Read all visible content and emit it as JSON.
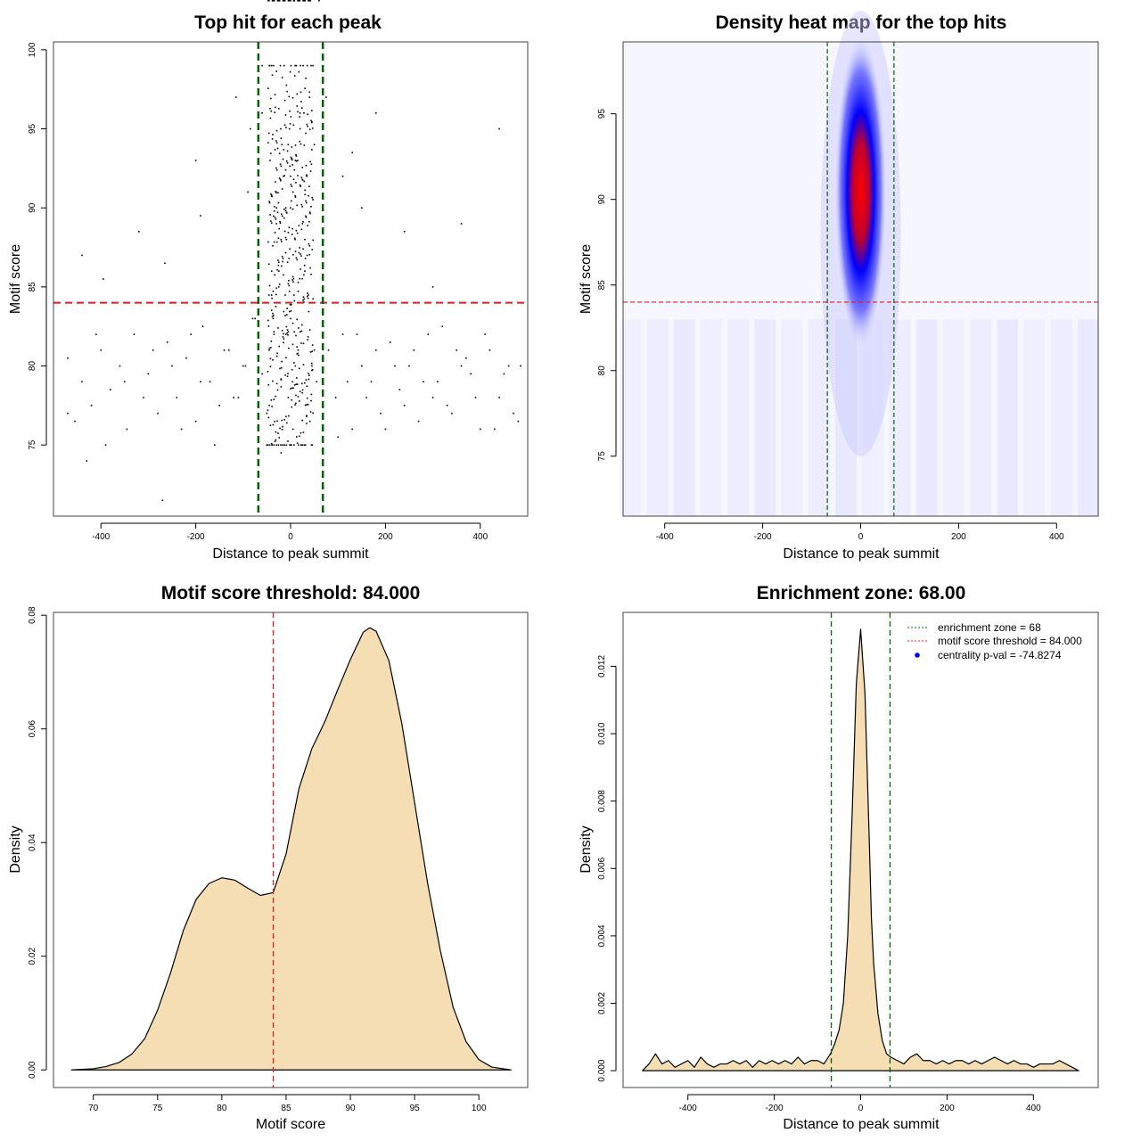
{
  "chart_data": [
    {
      "type": "scatter",
      "title": "Top hit for each peak",
      "xlabel": "Distance to peak summit",
      "ylabel": "Motif score",
      "xlim": [
        -500,
        500
      ],
      "ylim": [
        70.5,
        100.5
      ],
      "xticks": [
        -400,
        -200,
        0,
        200,
        400
      ],
      "yticks": [
        75,
        80,
        85,
        90,
        95,
        100
      ],
      "hline": 84,
      "vlines": [
        -68,
        68
      ],
      "colors": {
        "points": "#000000",
        "hline": "#e31a1c",
        "vlines": "#006400"
      },
      "points_x": [
        -470,
        -455,
        -440,
        -420,
        -400,
        -380,
        -360,
        -345,
        -330,
        -300,
        -280,
        -260,
        -240,
        -220,
        -200,
        -185,
        -170,
        -150,
        -130,
        -110,
        -95,
        -80,
        -60,
        -45,
        -470,
        -430,
        -410,
        -390,
        -350,
        -310,
        -290,
        -270,
        -250,
        -230,
        -210,
        -190,
        -160,
        -140,
        -120,
        -100,
        -75,
        -50,
        -320,
        -265,
        -200,
        -190,
        -115,
        -90,
        -85,
        -60,
        -440,
        -395,
        80,
        95,
        110,
        130,
        150,
        170,
        190,
        210,
        230,
        250,
        270,
        290,
        310,
        330,
        350,
        370,
        390,
        410,
        430,
        450,
        470,
        485,
        100,
        120,
        140,
        160,
        180,
        200,
        220,
        240,
        260,
        280,
        300,
        320,
        340,
        360,
        380,
        400,
        420,
        440,
        460,
        480,
        75,
        110,
        150,
        240,
        300,
        440,
        130,
        180,
        360,
        -30,
        -15,
        -5,
        5,
        15,
        25,
        35,
        -40,
        -20,
        0,
        20,
        40,
        -25,
        -10,
        10,
        30,
        -35,
        -5,
        5,
        45,
        55,
        -50,
        50,
        -45,
        -20,
        0,
        20,
        50,
        -30,
        30,
        -10,
        10,
        -60,
        60,
        0
      ],
      "points_y": [
        80.5,
        76.5,
        79,
        77.5,
        81,
        78.5,
        80,
        76,
        82,
        79.5,
        77,
        81.5,
        78,
        80.5,
        76.5,
        82.5,
        79,
        77.5,
        81,
        78,
        80,
        83,
        79.5,
        81,
        77,
        74,
        82,
        75,
        79,
        78,
        81,
        71.5,
        80,
        76,
        82,
        79,
        75,
        81,
        78,
        80,
        83,
        77,
        88.5,
        86.5,
        93,
        89.5,
        97,
        91,
        95,
        96,
        87,
        85.5,
        81,
        78,
        82,
        76,
        80,
        79,
        77,
        81.5,
        78.5,
        80,
        76.5,
        82,
        79,
        77.5,
        81,
        80.5,
        78,
        82,
        76,
        79.5,
        77,
        80,
        75.5,
        79,
        82,
        78,
        81,
        76,
        80,
        77.5,
        81,
        79,
        78,
        82.5,
        77,
        80,
        79.5,
        76,
        81,
        78,
        80,
        76.5,
        97,
        92,
        90,
        88.5,
        85,
        95,
        93.5,
        96,
        89,
        90,
        92,
        94,
        91,
        93,
        89,
        87,
        86,
        88,
        92,
        95,
        97,
        85,
        90,
        93,
        88,
        82,
        78,
        76,
        80,
        79,
        75,
        81,
        77.5,
        74.5,
        83,
        96,
        94,
        89,
        86,
        82,
        80,
        99
      ],
      "point_count_note": "sampled"
    },
    {
      "type": "heatmap",
      "title": "Density heat map for the top hits",
      "xlabel": "Distance to peak summit",
      "ylabel": "Motif score",
      "xlim": [
        -485,
        485
      ],
      "ylim": [
        71.5,
        99.2
      ],
      "xticks": [
        -400,
        -200,
        0,
        200,
        400
      ],
      "yticks": [
        75,
        80,
        85,
        90,
        95
      ],
      "hline": 84,
      "vlines": [
        -68,
        68
      ],
      "density_peak": {
        "x": 0,
        "y": 91.5
      },
      "colors": {
        "low": "#ffffff",
        "mid": "#0000ff",
        "high": "#ff0000",
        "hline": "#e31a1c",
        "vlines": "#006400"
      }
    },
    {
      "type": "area",
      "title": "Motif score threshold: 84.000",
      "xlabel": "Motif score",
      "ylabel": "Density",
      "xlim": [
        66.9,
        103.8
      ],
      "ylim": [
        -0.0031,
        0.0805
      ],
      "xticks": [
        70,
        75,
        80,
        85,
        90,
        95,
        100
      ],
      "yticks": [
        0.0,
        0.02,
        0.04,
        0.06,
        0.08
      ],
      "ytick_labels": [
        "0.00",
        "0.02",
        "0.04",
        "0.06",
        "0.08"
      ],
      "vline": 84,
      "x": [
        68.3,
        70,
        71,
        72,
        73,
        74,
        75,
        76,
        77,
        78,
        79,
        80,
        81,
        82,
        83,
        84,
        85,
        86,
        87,
        88,
        89,
        90,
        91,
        91.5,
        92,
        93,
        94,
        95,
        96,
        97,
        98,
        99,
        100,
        101,
        102.5
      ],
      "y": [
        0,
        0.0002,
        0.0006,
        0.0013,
        0.0028,
        0.0055,
        0.0105,
        0.017,
        0.0245,
        0.03,
        0.0328,
        0.0338,
        0.0334,
        0.032,
        0.0307,
        0.0312,
        0.038,
        0.0495,
        0.0565,
        0.0612,
        0.0668,
        0.0722,
        0.077,
        0.0778,
        0.0772,
        0.072,
        0.061,
        0.047,
        0.033,
        0.021,
        0.011,
        0.005,
        0.0018,
        0.0005,
        0
      ],
      "colors": {
        "fill": "#f5deb3",
        "vline": "#e31a1c"
      }
    },
    {
      "type": "area",
      "title": "Enrichment zone: 68.00",
      "xlabel": "Distance to peak summit",
      "ylabel": "Density",
      "xlim": [
        -550,
        550
      ],
      "ylim": [
        -0.0005,
        0.0136
      ],
      "xticks": [
        -400,
        -200,
        0,
        200,
        400
      ],
      "yticks": [
        0,
        0.002,
        0.004,
        0.006,
        0.008,
        0.01,
        0.012
      ],
      "ytick_labels": [
        "0.000",
        "0.002",
        "0.004",
        "0.006",
        "0.008",
        "0.010",
        "0.012"
      ],
      "vlines": [
        -68,
        68
      ],
      "x": [
        -505,
        -490,
        -475,
        -460,
        -445,
        -430,
        -415,
        -400,
        -385,
        -370,
        -355,
        -340,
        -325,
        -310,
        -295,
        -280,
        -265,
        -250,
        -235,
        -220,
        -205,
        -190,
        -175,
        -160,
        -145,
        -130,
        -115,
        -100,
        -85,
        -70,
        -60,
        -50,
        -40,
        -30,
        -20,
        -10,
        0,
        10,
        20,
        25,
        30,
        40,
        50,
        60,
        70,
        85,
        100,
        115,
        130,
        145,
        160,
        175,
        190,
        205,
        220,
        235,
        250,
        265,
        280,
        295,
        310,
        325,
        340,
        355,
        370,
        385,
        400,
        415,
        430,
        445,
        460,
        475,
        490,
        505
      ],
      "y": [
        0,
        0.0002,
        0.0005,
        0.0002,
        0.0003,
        0.0001,
        0.0002,
        0.0003,
        0.0001,
        0.0004,
        0.0002,
        0.0001,
        0.0002,
        0.0002,
        0.0003,
        0.0002,
        0.0003,
        0.0001,
        0.0003,
        0.0002,
        0.0003,
        0.0002,
        0.0003,
        0.0002,
        0.0004,
        0.0002,
        0.0003,
        0.0003,
        0.0002,
        0.0005,
        0.0008,
        0.0012,
        0.002,
        0.004,
        0.0075,
        0.0115,
        0.0131,
        0.0112,
        0.0068,
        0.0045,
        0.0032,
        0.0017,
        0.0009,
        0.0005,
        0.0004,
        0.0003,
        0.0002,
        0.0004,
        0.0005,
        0.0003,
        0.0003,
        0.0002,
        0.0003,
        0.0002,
        0.0003,
        0.0003,
        0.0002,
        0.0003,
        0.0002,
        0.0003,
        0.0004,
        0.0003,
        0.0002,
        0.0003,
        0.0002,
        0.0002,
        0.0001,
        0.0002,
        0.0002,
        0.0002,
        0.0003,
        0.0002,
        0.0001,
        0
      ],
      "legend": [
        {
          "label": "enrichment zone = 68",
          "style": "dotted",
          "color": "#006400"
        },
        {
          "label": "motif score threshold = 84.000",
          "style": "dotted",
          "color": "#e31a1c"
        },
        {
          "label": "centrality p-val = -74.8274",
          "style": "point",
          "color": "#0000ff"
        }
      ],
      "legend_position": "top-right",
      "colors": {
        "fill": "#f5deb3",
        "vlines": "#006400"
      }
    }
  ]
}
